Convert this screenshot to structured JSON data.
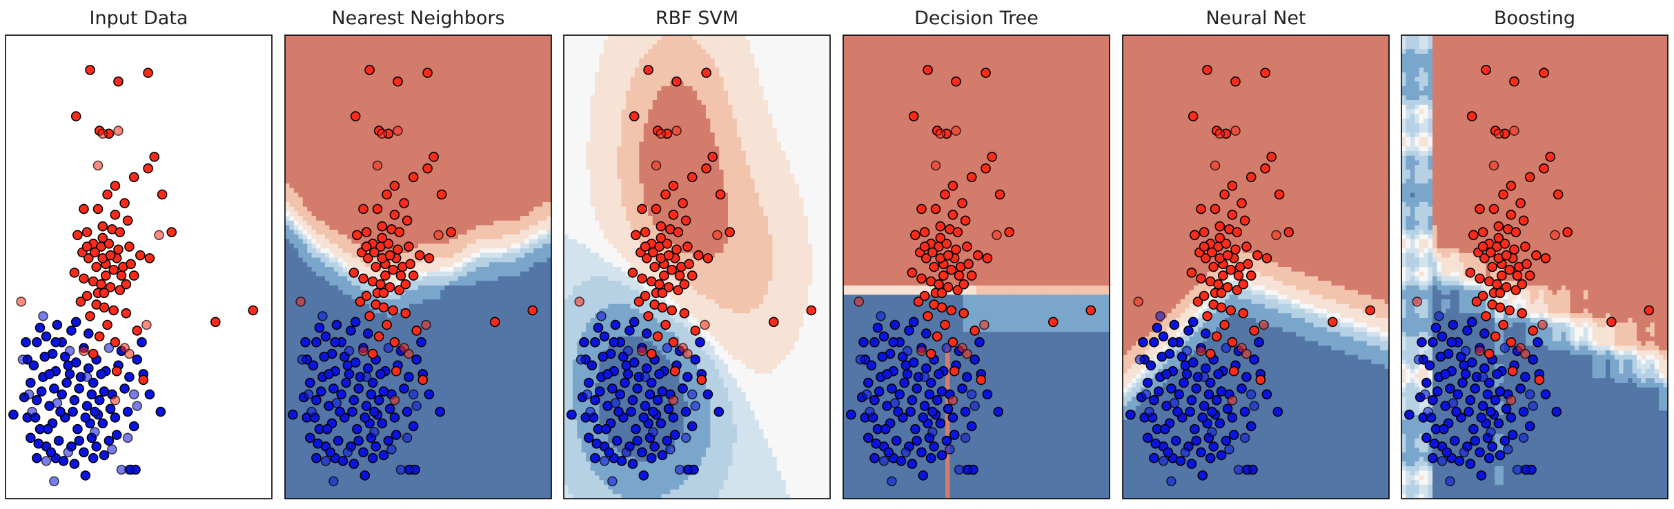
{
  "figure": {
    "title": ""
  },
  "colors": {
    "red_point": "#ff2b1a",
    "blue_point": "#0a14e0",
    "red_fill_dark": "#a64652",
    "red_fill_mid": "#d37c6b",
    "red_fill_light": "#f3c4ad",
    "red_fill_pale": "#f7e2d6",
    "neutral_fill": "#f7f7f7",
    "blue_fill_pale": "#d3e3ee",
    "blue_fill_light": "#b6d0e4",
    "blue_fill_mid": "#7aa6cc",
    "blue_fill_dark": "#5376a6",
    "axes_edge": "#000000",
    "point_edge": "#000000"
  },
  "chart_data": [
    {
      "type": "scatter",
      "title": "Input Data",
      "xlabel": "",
      "ylabel": "",
      "xlim": [
        -2.6,
        5.9
      ],
      "ylim": [
        -3.7,
        4.3
      ],
      "grid": false,
      "decision_surface": "none",
      "series": []
    },
    {
      "type": "scatter",
      "title": "Nearest Neighbors",
      "xlabel": "",
      "ylabel": "",
      "xlim": [
        -2.6,
        5.9
      ],
      "ylim": [
        -3.7,
        4.3
      ],
      "grid": false,
      "decision_surface": "knn",
      "series": []
    },
    {
      "type": "scatter",
      "title": "RBF SVM",
      "xlabel": "",
      "ylabel": "",
      "xlim": [
        -2.6,
        5.9
      ],
      "ylim": [
        -3.7,
        4.3
      ],
      "grid": false,
      "decision_surface": "rbf",
      "series": []
    },
    {
      "type": "scatter",
      "title": "Decision Tree",
      "xlabel": "",
      "ylabel": "",
      "xlim": [
        -2.6,
        5.9
      ],
      "ylim": [
        -3.7,
        4.3
      ],
      "grid": false,
      "decision_surface": "tree",
      "series": []
    },
    {
      "type": "scatter",
      "title": "Neural Net",
      "xlabel": "",
      "ylabel": "",
      "xlim": [
        -2.6,
        5.9
      ],
      "ylim": [
        -3.7,
        4.3
      ],
      "grid": false,
      "decision_surface": "mlp",
      "series": []
    },
    {
      "type": "scatter",
      "title": "Boosting",
      "xlabel": "",
      "ylabel": "",
      "xlim": [
        -2.6,
        5.9
      ],
      "ylim": [
        -3.7,
        4.3
      ],
      "grid": false,
      "decision_surface": "boosting",
      "series": []
    }
  ],
  "points": {
    "train_red": [
      [
        0.1,
        3.7
      ],
      [
        1.0,
        3.5
      ],
      [
        1.95,
        3.65
      ],
      [
        -0.35,
        2.9
      ],
      [
        0.4,
        2.65
      ],
      [
        0.7,
        2.6
      ],
      [
        2.15,
        2.2
      ],
      [
        1.95,
        2.0
      ],
      [
        1.5,
        1.85
      ],
      [
        0.9,
        1.7
      ],
      [
        0.65,
        1.55
      ],
      [
        1.2,
        1.4
      ],
      [
        2.4,
        1.55
      ],
      [
        -0.1,
        1.3
      ],
      [
        0.35,
        1.3
      ],
      [
        1.3,
        1.1
      ],
      [
        2.7,
        0.9
      ],
      [
        0.5,
        1.0
      ],
      [
        0.8,
        0.95
      ],
      [
        1.05,
        0.9
      ],
      [
        -0.3,
        0.85
      ],
      [
        0.0,
        0.9
      ],
      [
        0.2,
        0.7
      ],
      [
        0.45,
        0.65
      ],
      [
        0.7,
        0.7
      ],
      [
        1.0,
        0.6
      ],
      [
        1.35,
        0.65
      ],
      [
        1.7,
        0.5
      ],
      [
        2.0,
        0.45
      ],
      [
        0.05,
        0.45
      ],
      [
        0.3,
        0.3
      ],
      [
        0.6,
        0.35
      ],
      [
        0.85,
        0.25
      ],
      [
        1.15,
        0.3
      ],
      [
        1.5,
        0.15
      ],
      [
        -0.4,
        0.2
      ],
      [
        -0.1,
        0.1
      ],
      [
        0.2,
        0.05
      ],
      [
        0.45,
        0.0
      ],
      [
        0.75,
        -0.05
      ],
      [
        1.05,
        -0.1
      ],
      [
        0.3,
        -0.35
      ],
      [
        0.55,
        -0.4
      ],
      [
        0.85,
        -0.45
      ],
      [
        -0.2,
        -0.3
      ],
      [
        0.1,
        -0.55
      ],
      [
        0.65,
        -0.7
      ],
      [
        1.25,
        -0.5
      ],
      [
        0.4,
        -0.9
      ],
      [
        0.9,
        -1.0
      ],
      [
        0.2,
        -1.2
      ],
      [
        1.6,
        -0.8
      ],
      [
        4.1,
        -0.65
      ],
      [
        0.95,
        -1.5
      ],
      [
        0.5,
        0.45
      ],
      [
        0.25,
        0.55
      ],
      [
        0.95,
        0.45
      ],
      [
        -0.15,
        0.55
      ],
      [
        0.6,
        0.15
      ],
      [
        1.25,
        0.0
      ],
      [
        0.35,
        -0.15
      ],
      [
        0.0,
        -0.2
      ],
      [
        1.4,
        0.35
      ],
      [
        0.75,
        0.5
      ],
      [
        0.5,
        0.8
      ],
      [
        0.9,
        1.2
      ],
      [
        1.1,
        0.15
      ],
      [
        0.0,
        0.65
      ],
      [
        0.55,
        -0.15
      ],
      [
        5.3,
        -0.45
      ],
      [
        1.8,
        -1.65
      ]
    ],
    "test_red": [
      [
        1.0,
        2.65
      ],
      [
        0.5,
        2.6
      ],
      [
        0.35,
        2.05
      ],
      [
        2.3,
        0.85
      ],
      [
        -2.1,
        -0.3
      ],
      [
        1.2,
        -1.1
      ],
      [
        1.9,
        -0.7
      ],
      [
        1.35,
        -1.2
      ],
      [
        -0.1,
        -1.15
      ],
      [
        0.9,
        -2.0
      ]
    ],
    "train_blue": [
      [
        -1.9,
        -1.3
      ],
      [
        -1.6,
        -1.0
      ],
      [
        -1.3,
        -0.9
      ],
      [
        -1.1,
        -1.2
      ],
      [
        -0.8,
        -1.0
      ],
      [
        -0.5,
        -0.8
      ],
      [
        -0.1,
        -1.1
      ],
      [
        0.3,
        -1.3
      ],
      [
        -1.8,
        -1.7
      ],
      [
        -1.4,
        -1.6
      ],
      [
        -1.0,
        -1.5
      ],
      [
        -0.6,
        -1.4
      ],
      [
        -0.2,
        -1.6
      ],
      [
        0.2,
        -1.7
      ],
      [
        0.6,
        -1.5
      ],
      [
        1.0,
        -1.4
      ],
      [
        -1.6,
        -2.0
      ],
      [
        -1.2,
        -2.1
      ],
      [
        -0.8,
        -1.9
      ],
      [
        -0.4,
        -2.0
      ],
      [
        0.0,
        -2.1
      ],
      [
        0.4,
        -2.0
      ],
      [
        0.8,
        -1.9
      ],
      [
        1.2,
        -1.8
      ],
      [
        -1.9,
        -2.3
      ],
      [
        -1.5,
        -2.5
      ],
      [
        -1.1,
        -2.4
      ],
      [
        -0.7,
        -2.3
      ],
      [
        -0.3,
        -2.5
      ],
      [
        0.1,
        -2.4
      ],
      [
        0.5,
        -2.4
      ],
      [
        0.9,
        -2.3
      ],
      [
        1.3,
        -2.2
      ],
      [
        -1.3,
        -2.8
      ],
      [
        -0.9,
        -2.7
      ],
      [
        -0.5,
        -2.8
      ],
      [
        -0.1,
        -2.9
      ],
      [
        0.3,
        -2.8
      ],
      [
        0.7,
        -2.7
      ],
      [
        -1.6,
        -3.0
      ],
      [
        -1.0,
        -3.0
      ],
      [
        -0.4,
        -3.1
      ],
      [
        0.2,
        -3.0
      ],
      [
        -2.35,
        -2.25
      ],
      [
        2.35,
        -2.2
      ],
      [
        1.6,
        -1.3
      ],
      [
        1.8,
        -1.55
      ],
      [
        2.0,
        -1.9
      ],
      [
        1.75,
        -1.0
      ],
      [
        1.5,
        -2.45
      ],
      [
        -1.7,
        -1.4
      ],
      [
        -1.35,
        -1.25
      ],
      [
        -1.0,
        -1.0
      ],
      [
        -0.7,
        -1.25
      ],
      [
        -0.35,
        -1.35
      ],
      [
        0.05,
        -1.45
      ],
      [
        0.45,
        -1.55
      ],
      [
        -1.45,
        -1.85
      ],
      [
        -1.05,
        -1.8
      ],
      [
        -0.65,
        -1.7
      ],
      [
        -0.25,
        -1.8
      ],
      [
        0.15,
        -1.9
      ],
      [
        0.55,
        -1.85
      ],
      [
        -1.8,
        -2.65
      ],
      [
        -1.25,
        -2.5
      ],
      [
        -0.85,
        -2.2
      ],
      [
        -0.45,
        -2.2
      ],
      [
        -0.05,
        -2.3
      ],
      [
        0.35,
        -2.25
      ],
      [
        0.75,
        -2.15
      ],
      [
        -1.55,
        -2.75
      ],
      [
        -1.15,
        -2.9
      ],
      [
        -0.75,
        -3.05
      ],
      [
        -0.25,
        -2.7
      ],
      [
        0.15,
        -2.65
      ],
      [
        0.55,
        -2.95
      ],
      [
        -1.95,
        -1.0
      ],
      [
        -1.5,
        -0.75
      ],
      [
        -0.95,
        -0.7
      ],
      [
        -0.35,
        -0.65
      ],
      [
        0.05,
        -0.85
      ],
      [
        -1.65,
        -2.3
      ],
      [
        1.1,
        -1.15
      ],
      [
        1.35,
        -1.6
      ],
      [
        -0.05,
        -3.3
      ],
      [
        1.4,
        -3.2
      ],
      [
        1.55,
        -3.2
      ],
      [
        -2.0,
        -1.95
      ],
      [
        -1.2,
        -1.55
      ],
      [
        -0.55,
        -1.55
      ],
      [
        0.25,
        -2.2
      ],
      [
        0.95,
        -2.6
      ]
    ],
    "test_blue": [
      [
        -1.4,
        -0.55
      ],
      [
        -2.05,
        -1.3
      ],
      [
        -1.75,
        -2.2
      ],
      [
        -1.3,
        -3.05
      ],
      [
        -0.6,
        -2.9
      ],
      [
        0.25,
        -2.55
      ],
      [
        0.8,
        -2.85
      ],
      [
        1.3,
        -2.65
      ],
      [
        1.5,
        -1.9
      ],
      [
        1.35,
        -3.2
      ],
      [
        1.1,
        -3.2
      ],
      [
        -1.05,
        -3.4
      ],
      [
        -0.55,
        -1.15
      ],
      [
        0.0,
        -1.6
      ],
      [
        -0.95,
        -2.05
      ],
      [
        1.6,
        -2.1
      ],
      [
        -1.85,
        -1.9
      ],
      [
        0.7,
        -1.1
      ]
    ]
  }
}
